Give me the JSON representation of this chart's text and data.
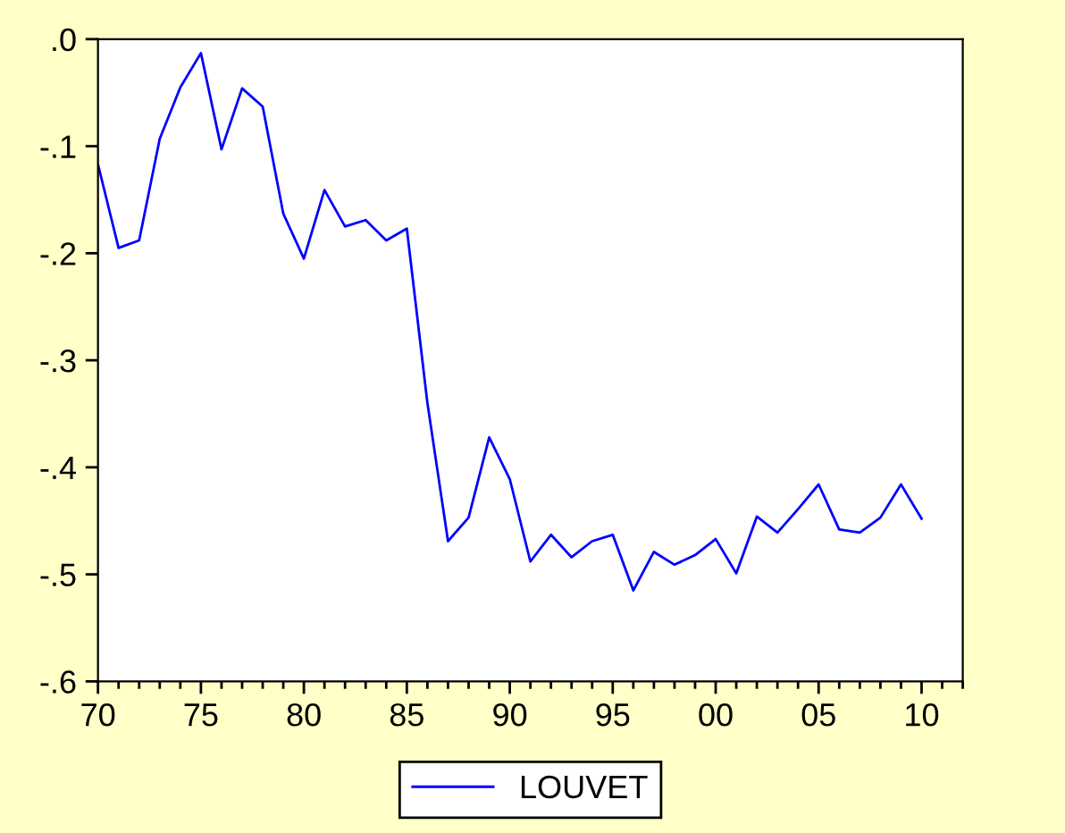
{
  "chart_data": {
    "type": "line",
    "x": [
      1970,
      1971,
      1972,
      1973,
      1974,
      1975,
      1976,
      1977,
      1978,
      1979,
      1980,
      1981,
      1982,
      1983,
      1984,
      1985,
      1986,
      1987,
      1988,
      1989,
      1990,
      1991,
      1992,
      1993,
      1994,
      1995,
      1996,
      1997,
      1998,
      1999,
      2000,
      2001,
      2002,
      2003,
      2004,
      2005,
      2006,
      2007,
      2008,
      2009,
      2010
    ],
    "series": [
      {
        "name": "LOUVET",
        "color": "#0000ff",
        "values": [
          -0.117,
          -0.195,
          -0.188,
          -0.093,
          -0.045,
          -0.013,
          -0.103,
          -0.046,
          -0.063,
          -0.163,
          -0.205,
          -0.141,
          -0.175,
          -0.169,
          -0.188,
          -0.177,
          -0.34,
          -0.469,
          -0.447,
          -0.372,
          -0.411,
          -0.488,
          -0.463,
          -0.484,
          -0.469,
          -0.463,
          -0.515,
          -0.479,
          -0.491,
          -0.482,
          -0.467,
          -0.499,
          -0.446,
          -0.461,
          -0.439,
          -0.416,
          -0.458,
          -0.461,
          -0.447,
          -0.416,
          -0.448
        ]
      }
    ],
    "xlim": [
      1970,
      2012
    ],
    "xticks": [
      {
        "value": 1970,
        "label": "70"
      },
      {
        "value": 1971,
        "label": null
      },
      {
        "value": 1972,
        "label": null
      },
      {
        "value": 1973,
        "label": null
      },
      {
        "value": 1974,
        "label": null
      },
      {
        "value": 1975,
        "label": "75"
      },
      {
        "value": 1976,
        "label": null
      },
      {
        "value": 1977,
        "label": null
      },
      {
        "value": 1978,
        "label": null
      },
      {
        "value": 1979,
        "label": null
      },
      {
        "value": 1980,
        "label": "80"
      },
      {
        "value": 1981,
        "label": null
      },
      {
        "value": 1982,
        "label": null
      },
      {
        "value": 1983,
        "label": null
      },
      {
        "value": 1984,
        "label": null
      },
      {
        "value": 1985,
        "label": "85"
      },
      {
        "value": 1986,
        "label": null
      },
      {
        "value": 1987,
        "label": null
      },
      {
        "value": 1988,
        "label": null
      },
      {
        "value": 1989,
        "label": null
      },
      {
        "value": 1990,
        "label": "90"
      },
      {
        "value": 1991,
        "label": null
      },
      {
        "value": 1992,
        "label": null
      },
      {
        "value": 1993,
        "label": null
      },
      {
        "value": 1994,
        "label": null
      },
      {
        "value": 1995,
        "label": "95"
      },
      {
        "value": 1996,
        "label": null
      },
      {
        "value": 1997,
        "label": null
      },
      {
        "value": 1998,
        "label": null
      },
      {
        "value": 1999,
        "label": null
      },
      {
        "value": 2000,
        "label": "00"
      },
      {
        "value": 2001,
        "label": null
      },
      {
        "value": 2002,
        "label": null
      },
      {
        "value": 2003,
        "label": null
      },
      {
        "value": 2004,
        "label": null
      },
      {
        "value": 2005,
        "label": "05"
      },
      {
        "value": 2006,
        "label": null
      },
      {
        "value": 2007,
        "label": null
      },
      {
        "value": 2008,
        "label": null
      },
      {
        "value": 2009,
        "label": null
      },
      {
        "value": 2010,
        "label": "10"
      },
      {
        "value": 2011,
        "label": null
      },
      {
        "value": 2012,
        "label": null
      }
    ],
    "ylim": [
      -0.6,
      0.0
    ],
    "yticks": [
      {
        "value": -0.6,
        "label": "-.6"
      },
      {
        "value": -0.5,
        "label": "-.5"
      },
      {
        "value": -0.4,
        "label": "-.4"
      },
      {
        "value": -0.3,
        "label": "-.3"
      },
      {
        "value": -0.2,
        "label": "-.2"
      },
      {
        "value": -0.1,
        "label": "-.1"
      },
      {
        "value": 0.0,
        "label": ".0"
      }
    ],
    "grid": false,
    "legend": "bottom",
    "marker": "none",
    "line_style": "solid"
  }
}
